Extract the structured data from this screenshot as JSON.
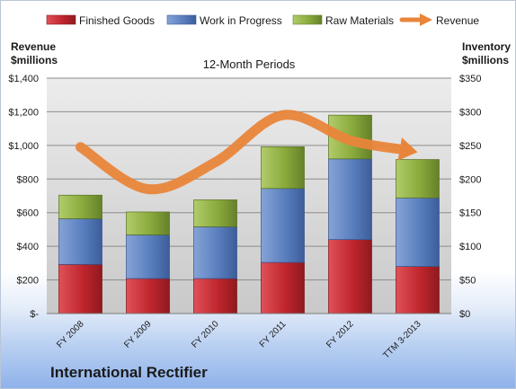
{
  "company_name": "International Rectifier",
  "chart_data": {
    "type": "bar",
    "stacked": true,
    "title": "12-Month Periods",
    "categories": [
      "FY 2008",
      "FY 2009",
      "FY 2010",
      "FY 2011",
      "FY 2012",
      "TTM 3-2013"
    ],
    "left_axis": {
      "label_line1": "Revenue",
      "label_line2": "$millions",
      "ylim": [
        0,
        1400
      ],
      "tick_values": [
        0,
        200,
        400,
        600,
        800,
        1000,
        1200,
        1400
      ],
      "tick_labels": [
        "$-",
        "$200",
        "$400",
        "$600",
        "$800",
        "$1,000",
        "$1,200",
        "$1,400"
      ]
    },
    "right_axis": {
      "label_line1": "Inventory",
      "label_line2": "$millions",
      "ylim": [
        0,
        350
      ],
      "tick_values": [
        0,
        50,
        100,
        150,
        200,
        250,
        300,
        350
      ],
      "tick_labels": [
        "$0",
        "$50",
        "$100",
        "$150",
        "$200",
        "$250",
        "$300",
        "$350"
      ]
    },
    "series": [
      {
        "name": "Finished Goods",
        "kind": "bar",
        "axis": "right",
        "color": "#c0262d",
        "values": [
          73,
          52,
          52,
          76,
          110,
          70
        ]
      },
      {
        "name": "Work in Progress",
        "kind": "bar",
        "axis": "right",
        "color": "#5a7fbf",
        "values": [
          68,
          65,
          77,
          110,
          120,
          102
        ]
      },
      {
        "name": "Raw Materials",
        "kind": "bar",
        "axis": "right",
        "color": "#8aaa3c",
        "values": [
          35,
          34,
          40,
          62,
          65,
          57
        ]
      },
      {
        "name": "Revenue",
        "kind": "line",
        "axis": "left",
        "color": "#e9853a",
        "values": [
          990,
          740,
          900,
          1180,
          1030,
          960
        ]
      }
    ],
    "grid": true,
    "legend": "top"
  }
}
